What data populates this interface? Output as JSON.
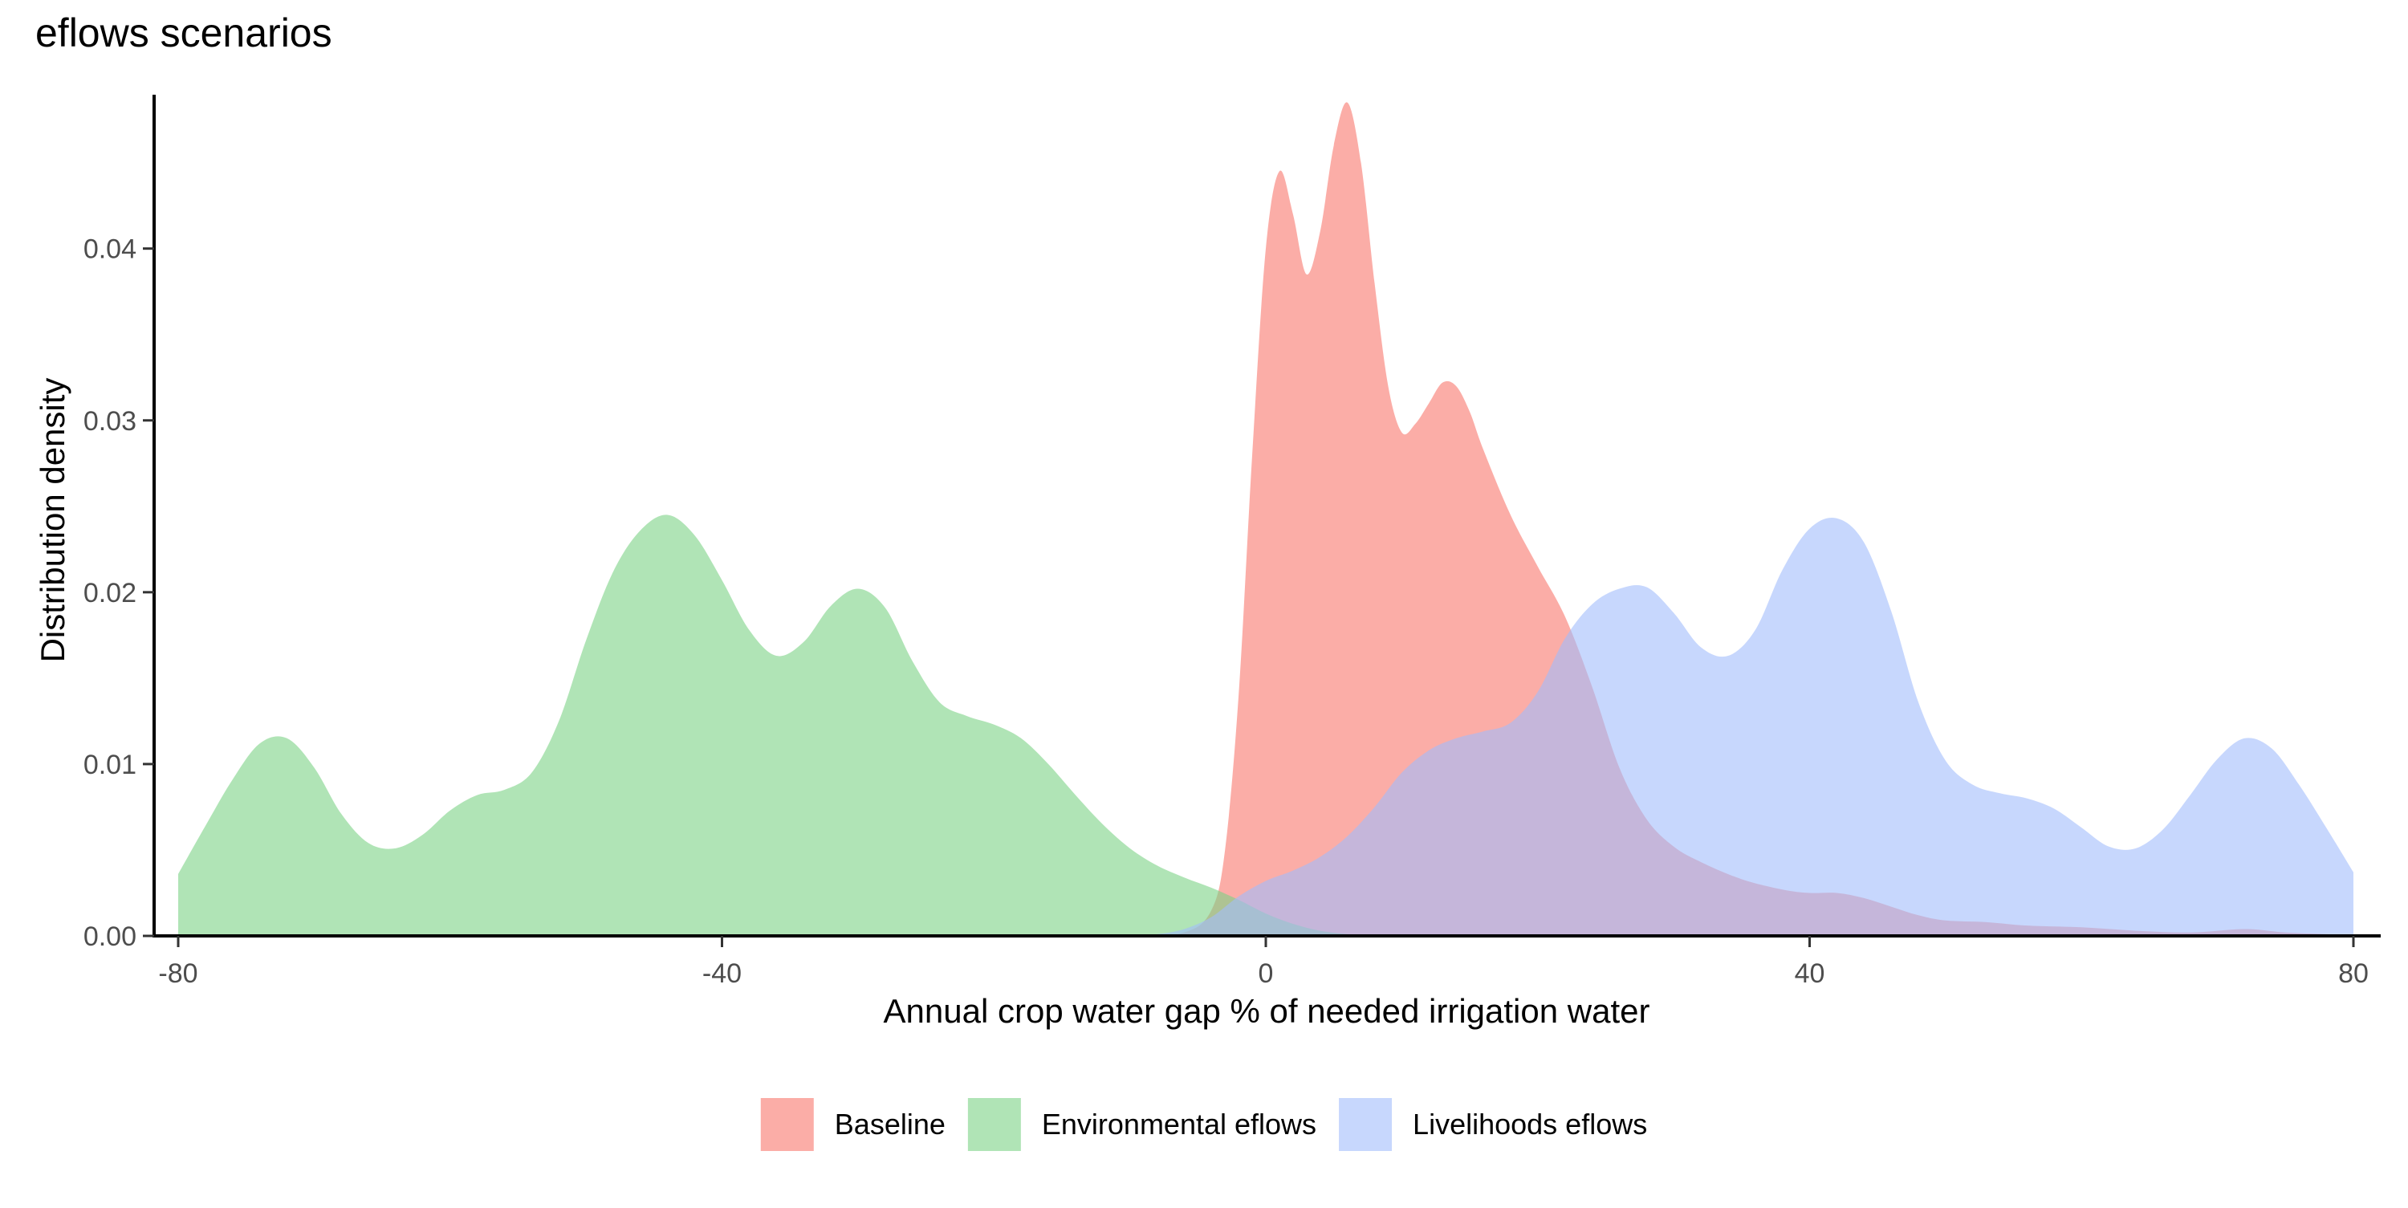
{
  "chart_data": {
    "type": "area",
    "title": "eflows scenarios",
    "xlabel": "Annual crop water gap % of needed irrigation water",
    "ylabel": "Distribution density",
    "xlim": [
      -80,
      80
    ],
    "ylim": [
      0,
      0.049
    ],
    "x_ticks": [
      -80,
      -40,
      0,
      40,
      80
    ],
    "x_tick_labels": [
      "-80",
      "-40",
      "0",
      "40",
      "80"
    ],
    "y_ticks": [
      0,
      0.01,
      0.02,
      0.03,
      0.04
    ],
    "y_tick_labels": [
      "0.00",
      "0.01",
      "0.02",
      "0.03",
      "0.04"
    ],
    "grid": false,
    "legend_position": "bottom",
    "series": [
      {
        "name": "Baseline",
        "color": "#F8766D",
        "x": [
          -80,
          -10,
          -6,
          -4,
          -3,
          -2,
          -1,
          0,
          1,
          2,
          3,
          4,
          5,
          6,
          7,
          8,
          9,
          10,
          11,
          12,
          13,
          14,
          15,
          16,
          18,
          20,
          22,
          24,
          26,
          28,
          30,
          32,
          35,
          38,
          40,
          42,
          44,
          46,
          48,
          50,
          53,
          56,
          60,
          64,
          68,
          72,
          75,
          78,
          80
        ],
        "values": [
          0,
          0,
          0.0002,
          0.0015,
          0.005,
          0.014,
          0.028,
          0.04,
          0.0445,
          0.042,
          0.0385,
          0.041,
          0.046,
          0.0485,
          0.045,
          0.038,
          0.032,
          0.0293,
          0.0298,
          0.031,
          0.0322,
          0.032,
          0.0305,
          0.0283,
          0.0245,
          0.0215,
          0.0186,
          0.0145,
          0.0098,
          0.0068,
          0.0052,
          0.0043,
          0.0033,
          0.0027,
          0.0025,
          0.0025,
          0.0022,
          0.0017,
          0.0012,
          0.0009,
          0.0008,
          0.0006,
          0.0005,
          0.0003,
          0.0002,
          0.0004,
          0.0002,
          0.0001,
          0
        ]
      },
      {
        "name": "Environmental eflows",
        "color": "#7CD286",
        "x": [
          -80,
          -78,
          -76,
          -74,
          -72,
          -70,
          -68,
          -66,
          -64,
          -62,
          -60,
          -58,
          -56,
          -54,
          -52,
          -50,
          -48,
          -46,
          -44,
          -42,
          -40,
          -38,
          -36,
          -34,
          -32,
          -30,
          -28,
          -26,
          -24,
          -22,
          -20,
          -18,
          -16,
          -14,
          -12,
          -10,
          -8,
          -6,
          -4,
          -2,
          0,
          2,
          4,
          6,
          8,
          10,
          80
        ],
        "values": [
          0.0036,
          0.0064,
          0.0091,
          0.0112,
          0.0115,
          0.0098,
          0.0071,
          0.0054,
          0.0051,
          0.0059,
          0.0073,
          0.0082,
          0.0085,
          0.0095,
          0.0125,
          0.0172,
          0.0212,
          0.0236,
          0.0245,
          0.0233,
          0.0207,
          0.0178,
          0.0163,
          0.0171,
          0.0192,
          0.0202,
          0.0191,
          0.016,
          0.0136,
          0.0128,
          0.0123,
          0.0115,
          0.01,
          0.0082,
          0.0065,
          0.0051,
          0.0041,
          0.0034,
          0.0028,
          0.0021,
          0.0013,
          0.0007,
          0.0003,
          0.0001,
          5e-05,
          0,
          0
        ]
      },
      {
        "name": "Livelihoods eflows",
        "color": "#A1BDFC",
        "x": [
          -80,
          -10,
          -8,
          -6,
          -4,
          -2,
          0,
          2,
          4,
          6,
          8,
          10,
          12,
          14,
          16,
          18,
          20,
          22,
          24,
          26,
          28,
          30,
          32,
          34,
          36,
          38,
          40,
          42,
          44,
          46,
          48,
          50,
          52,
          54,
          56,
          58,
          60,
          62,
          64,
          66,
          68,
          70,
          72,
          74,
          76,
          78,
          80
        ],
        "values": [
          0,
          0,
          0.0001,
          0.0004,
          0.0011,
          0.0023,
          0.0032,
          0.0038,
          0.0046,
          0.0058,
          0.0075,
          0.0095,
          0.0108,
          0.0115,
          0.0119,
          0.0124,
          0.0142,
          0.0173,
          0.0193,
          0.0202,
          0.0203,
          0.0188,
          0.0168,
          0.0163,
          0.0178,
          0.0213,
          0.0237,
          0.0243,
          0.0229,
          0.0189,
          0.0136,
          0.0102,
          0.0088,
          0.0083,
          0.008,
          0.0074,
          0.0063,
          0.0052,
          0.0051,
          0.0062,
          0.0082,
          0.0103,
          0.0115,
          0.0109,
          0.0088,
          0.0063,
          0.0037
        ]
      }
    ]
  }
}
